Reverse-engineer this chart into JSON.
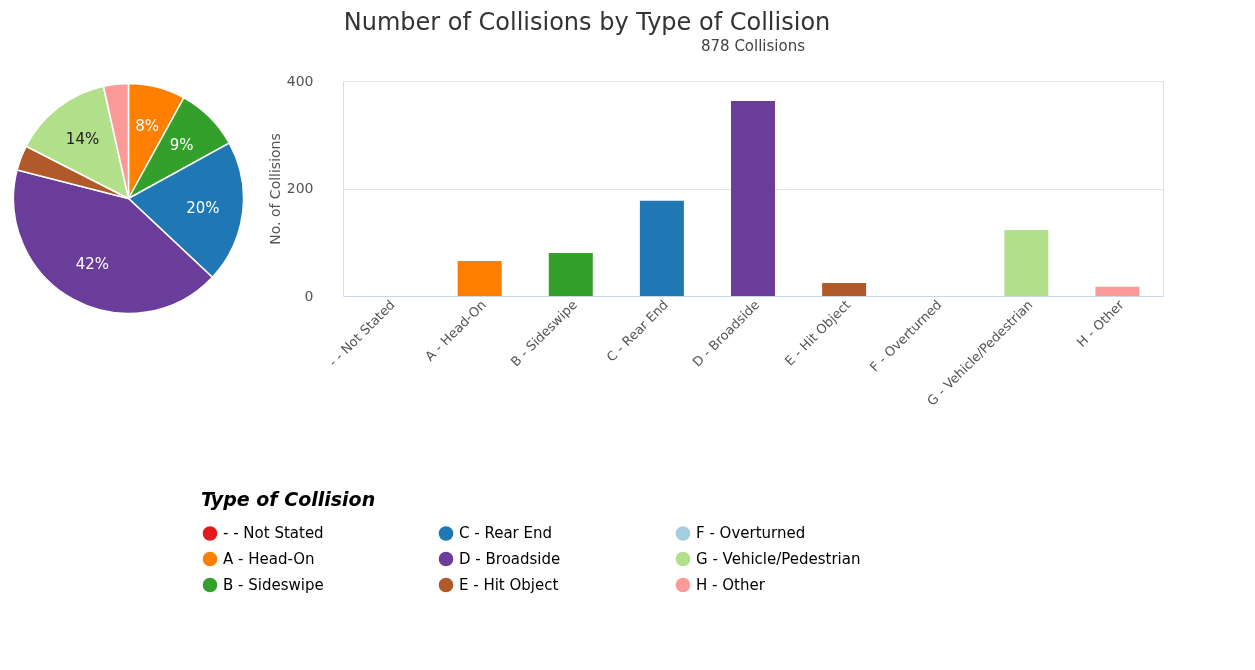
{
  "chart_data": [
    {
      "type": "pie",
      "categories": [
        "- - Not Stated",
        "A - Head-On",
        "B - Sideswipe",
        "C - Rear End",
        "D - Broadside",
        "E - Hit Object",
        "F - Overturned",
        "G - Vehicle/Pedestrian",
        "H - Other"
      ],
      "values": [
        0,
        8,
        9,
        20,
        42,
        3.5,
        0,
        14,
        3.5
      ],
      "value_labels": [
        null,
        "8%",
        "9%",
        "20%",
        "42%",
        null,
        null,
        "14%",
        null
      ],
      "colors": [
        "#e31a1c",
        "#ff7f00",
        "#33a02c",
        "#1f78b4",
        "#6a3d9a",
        "#b15928",
        "#a6cee3",
        "#b2df8a",
        "#fb9a99"
      ],
      "legend_title": "Type of Collision",
      "legend": "bottom"
    },
    {
      "type": "bar",
      "title": "Number of Collisions by Type of Collision",
      "subtitle": "878 Collisions",
      "categories": [
        "- - Not Stated",
        "A - Head-On",
        "B - Sideswipe",
        "C - Rear End",
        "D - Broadside",
        "E - Hit Object",
        "F - Overturned",
        "G - Vehicle/Pedestrian",
        "H - Other"
      ],
      "values": [
        0,
        65,
        80,
        177,
        363,
        24,
        0,
        123,
        17
      ],
      "colors": [
        "#e31a1c",
        "#ff7f00",
        "#33a02c",
        "#1f78b4",
        "#6a3d9a",
        "#b15928",
        "#a6cee3",
        "#b2df8a",
        "#fb9a99"
      ],
      "ylabel": "No. of Collisions",
      "ylim": [
        0,
        400
      ],
      "yticks": [
        0,
        200,
        400
      ],
      "grid": "y"
    }
  ]
}
